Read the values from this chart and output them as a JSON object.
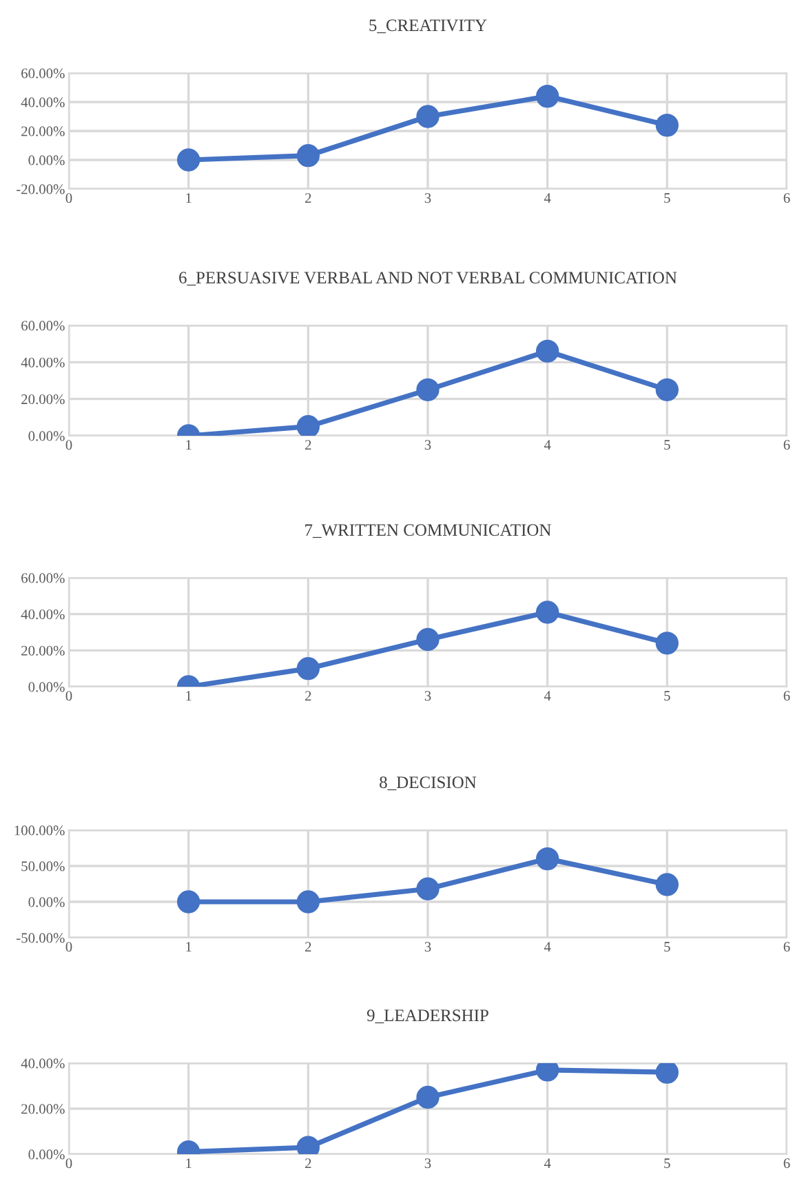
{
  "chart_data": [
    {
      "type": "line",
      "title": "5_CREATIVITY",
      "x": [
        1,
        2,
        3,
        4,
        5
      ],
      "series": [
        {
          "color": "#4472c4",
          "values": [
            0,
            3,
            30,
            44,
            24
          ]
        }
      ],
      "xlim": [
        0,
        6
      ],
      "xticks": [
        0,
        1,
        2,
        3,
        4,
        5,
        6
      ],
      "ylim": [
        -20,
        60
      ],
      "yticks": [
        {
          "value": -20,
          "label": "-20.00%"
        },
        {
          "value": 0,
          "label": "0.00%"
        },
        {
          "value": 20,
          "label": "20.00%"
        },
        {
          "value": 40,
          "label": "40.00%"
        },
        {
          "value": 60,
          "label": "60.00%"
        }
      ],
      "grid": true,
      "marker": "circle",
      "line_style": "solid"
    },
    {
      "type": "line",
      "title": "6_PERSUASIVE VERBAL AND NOT VERBAL COMMUNICATION",
      "x": [
        1,
        2,
        3,
        4,
        5
      ],
      "series": [
        {
          "color": "#4472c4",
          "values": [
            0,
            5,
            25,
            46,
            25
          ]
        }
      ],
      "xlim": [
        0,
        6
      ],
      "xticks": [
        0,
        1,
        2,
        3,
        4,
        5,
        6
      ],
      "ylim": [
        0,
        60
      ],
      "yticks": [
        {
          "value": 0,
          "label": "0.00%"
        },
        {
          "value": 20,
          "label": "20.00%"
        },
        {
          "value": 40,
          "label": "40.00%"
        },
        {
          "value": 60,
          "label": "60.00%"
        }
      ],
      "grid": true,
      "marker": "circle",
      "line_style": "solid"
    },
    {
      "type": "line",
      "title": "7_WRITTEN COMMUNICATION",
      "x": [
        1,
        2,
        3,
        4,
        5
      ],
      "series": [
        {
          "color": "#4472c4",
          "values": [
            0,
            10,
            26,
            41,
            24
          ]
        }
      ],
      "xlim": [
        0,
        6
      ],
      "xticks": [
        0,
        1,
        2,
        3,
        4,
        5,
        6
      ],
      "ylim": [
        0,
        60
      ],
      "yticks": [
        {
          "value": 0,
          "label": "0.00%"
        },
        {
          "value": 20,
          "label": "20.00%"
        },
        {
          "value": 40,
          "label": "40.00%"
        },
        {
          "value": 60,
          "label": "60.00%"
        }
      ],
      "grid": true,
      "marker": "circle",
      "line_style": "solid"
    },
    {
      "type": "line",
      "title": "8_DECISION",
      "x": [
        1,
        2,
        3,
        4,
        5
      ],
      "series": [
        {
          "color": "#4472c4",
          "values": [
            0,
            0,
            18,
            60,
            24
          ]
        }
      ],
      "xlim": [
        0,
        6
      ],
      "xticks": [
        0,
        1,
        2,
        3,
        4,
        5,
        6
      ],
      "ylim": [
        -50,
        100
      ],
      "yticks": [
        {
          "value": -50,
          "label": "-50.00%"
        },
        {
          "value": 0,
          "label": "0.00%"
        },
        {
          "value": 50,
          "label": "50.00%"
        },
        {
          "value": 100,
          "label": "100.00%"
        }
      ],
      "grid": true,
      "marker": "circle",
      "line_style": "solid"
    },
    {
      "type": "line",
      "title": "9_LEADERSHIP",
      "x": [
        1,
        2,
        3,
        4,
        5
      ],
      "series": [
        {
          "color": "#4472c4",
          "values": [
            1,
            3,
            25,
            37,
            36
          ]
        }
      ],
      "xlim": [
        0,
        6
      ],
      "xticks": [
        0,
        1,
        2,
        3,
        4,
        5,
        6
      ],
      "ylim": [
        0,
        40
      ],
      "yticks": [
        {
          "value": 0,
          "label": "0.00%"
        },
        {
          "value": 20,
          "label": "20.00%"
        },
        {
          "value": 40,
          "label": "40.00%"
        }
      ],
      "grid": true,
      "marker": "circle",
      "line_style": "solid"
    }
  ]
}
